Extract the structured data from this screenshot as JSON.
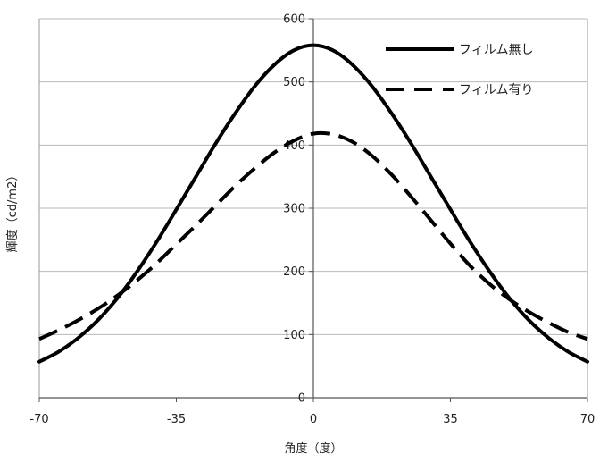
{
  "chart_data": {
    "type": "line",
    "title": "",
    "xlabel": "角度（度）",
    "ylabel": "輝度（cd/m2）",
    "xlim": [
      -70,
      70
    ],
    "ylim": [
      0,
      600
    ],
    "x_ticks": [
      -70,
      -35,
      0,
      35,
      70
    ],
    "y_ticks": [
      0,
      100,
      200,
      300,
      400,
      500,
      600
    ],
    "x_tick_labels": [
      "-70",
      "-35",
      "0",
      "35",
      "70"
    ],
    "y_tick_labels": [
      "0",
      "100",
      "200",
      "300",
      "400",
      "500",
      "600"
    ],
    "grid": {
      "horizontal": true,
      "vertical": false
    },
    "legend_position": "top-right",
    "x": [
      -70,
      -65,
      -60,
      -55,
      -50,
      -45,
      -40,
      -35,
      -30,
      -25,
      -20,
      -15,
      -10,
      -5,
      0,
      5,
      10,
      15,
      20,
      25,
      30,
      35,
      40,
      45,
      50,
      55,
      60,
      65,
      70
    ],
    "series": [
      {
        "name": "フィルム無し",
        "style": "solid",
        "color": "#000000",
        "values": [
          57,
          73,
          95,
          123,
          158,
          200,
          247,
          298,
          350,
          402,
          450,
          493,
          527,
          550,
          558,
          550,
          527,
          493,
          450,
          402,
          350,
          298,
          247,
          200,
          158,
          123,
          95,
          73,
          57
        ]
      },
      {
        "name": "フィルム有り",
        "style": "dashed",
        "color": "#000000",
        "values": [
          93,
          107,
          123,
          141,
          162,
          186,
          213,
          243,
          273,
          304,
          335,
          363,
          388,
          407,
          418,
          417,
          405,
          383,
          353,
          318,
          281,
          244,
          209,
          180,
          156,
          136,
          119,
          104,
          93
        ]
      }
    ]
  }
}
